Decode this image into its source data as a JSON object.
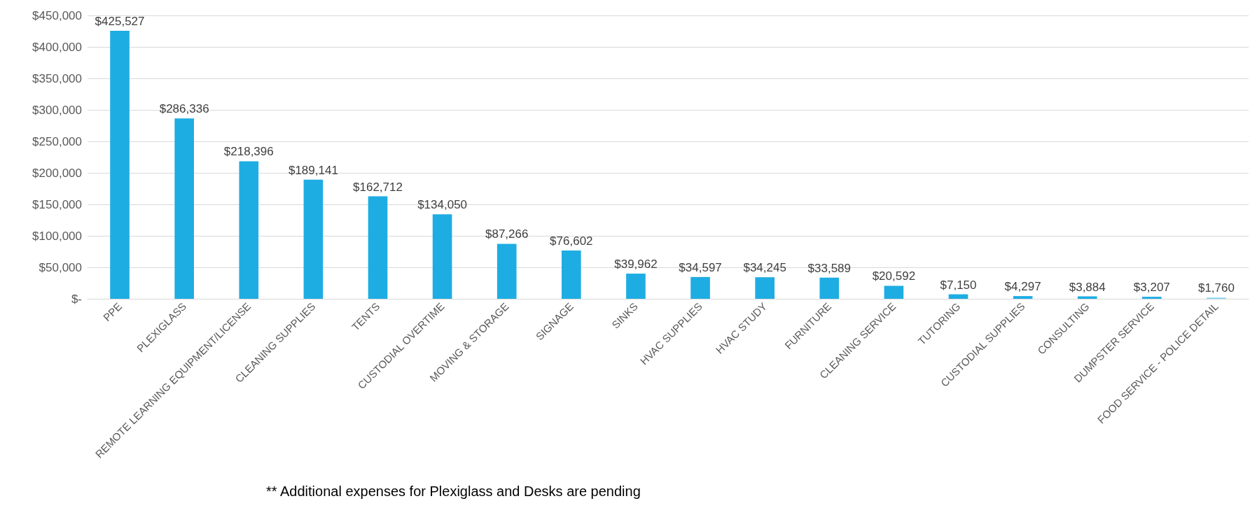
{
  "chart_data": {
    "type": "bar",
    "categories": [
      "PPE",
      "PLEXIGLASS",
      "REMOTE LEARNING EQUIPMENT/LICENSE",
      "CLEANING SUPPLIES",
      "TENTS",
      "CUSTODIAL OVERTIME",
      "MOVING & STORAGE",
      "SIGNAGE",
      "SINKS",
      "HVAC SUPPLIES",
      "HVAC STUDY",
      "FURNITURE",
      "CLEANING SERVICE",
      "TUTORING",
      "CUSTODIAL SUPPLIES",
      "CONSULTING",
      "DUMPSTER SERVICE",
      "FOOD SERVICE - POLICE DETAIL"
    ],
    "values": [
      425527,
      286336,
      218396,
      189141,
      162712,
      134050,
      87266,
      76602,
      39962,
      34597,
      34245,
      33589,
      20592,
      7150,
      4297,
      3884,
      3207,
      1760
    ],
    "value_labels": [
      "$425,527",
      "$286,336",
      "$218,396",
      "$189,141",
      "$162,712",
      "$134,050",
      "$87,266",
      "$76,602",
      "$39,962",
      "$34,597",
      "$34,245",
      "$33,589",
      "$20,592",
      "$7,150",
      "$4,297",
      "$3,884",
      "$3,207",
      "$1,760"
    ],
    "colors": [
      "#1eade3",
      "#1eade3",
      "#1eade3",
      "#1eade3",
      "#1eade3",
      "#1eade3",
      "#1eade3",
      "#1eade3",
      "#1eade3",
      "#1eade3",
      "#1eade3",
      "#1eade3",
      "#1eade3",
      "#1eade3",
      "#1eade3",
      "#1eade3",
      "#1eade3",
      "#7fd0ee"
    ],
    "ylim": [
      0,
      450000
    ],
    "yticks": [
      {
        "value": 0,
        "label": "$-"
      },
      {
        "value": 50000,
        "label": "$50,000"
      },
      {
        "value": 100000,
        "label": "$100,000"
      },
      {
        "value": 150000,
        "label": "$150,000"
      },
      {
        "value": 200000,
        "label": "$200,000"
      },
      {
        "value": 250000,
        "label": "$250,000"
      },
      {
        "value": 300000,
        "label": "$300,000"
      },
      {
        "value": 350000,
        "label": "$350,000"
      },
      {
        "value": 400000,
        "label": "$400,000"
      },
      {
        "value": 450000,
        "label": "$450,000"
      }
    ],
    "grid": "y",
    "annotations": [
      "** Additional expenses for Plexiglass and Desks are pending"
    ]
  }
}
